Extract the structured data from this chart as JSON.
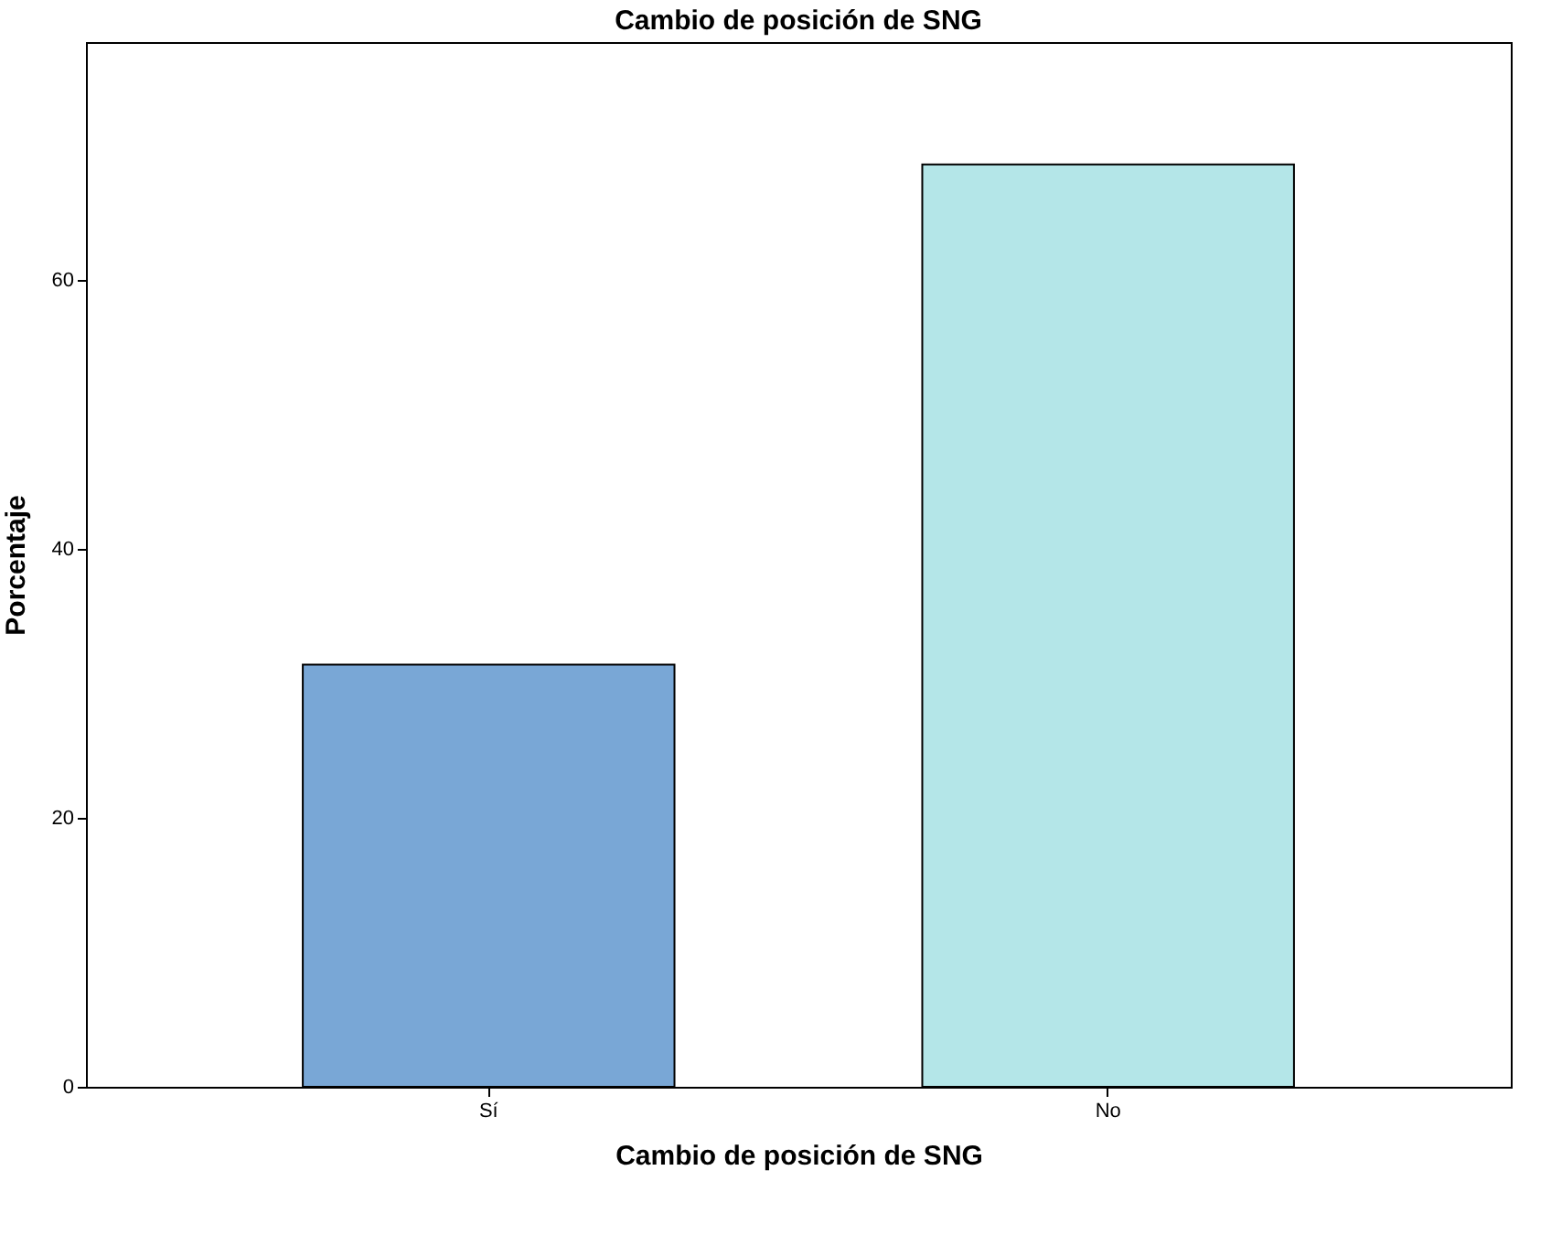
{
  "chart_data": {
    "type": "bar",
    "title": "Cambio de posición de SNG",
    "xlabel": "Cambio de posición de SNG",
    "ylabel": "Porcentaje",
    "categories": [
      "Sí",
      "No"
    ],
    "values": [
      31.4,
      68.6
    ],
    "colors": [
      "#79a7d6",
      "#b4e6e8"
    ],
    "ylim": [
      0,
      77.7
    ],
    "yticks": [
      0,
      20,
      40,
      60
    ],
    "grid": false
  }
}
